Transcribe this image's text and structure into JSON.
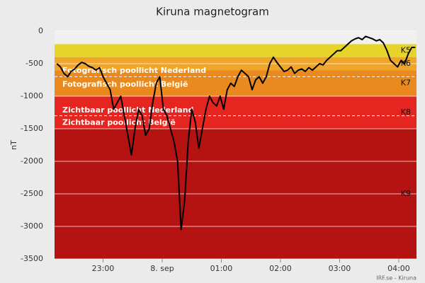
{
  "chart_data": {
    "type": "line",
    "title": "Kiruna magnetogram",
    "ylabel": "nT",
    "footer": "IRF.se - Kiruna",
    "ylim": [
      -3500,
      0
    ],
    "yticks": [
      0,
      -500,
      -1000,
      -1500,
      -2000,
      -2500,
      -3000,
      -3500
    ],
    "xlim": [
      22.18,
      28.3
    ],
    "xticks": [
      {
        "value": 23,
        "label": "23:00"
      },
      {
        "value": 24,
        "label": "8. sep"
      },
      {
        "value": 25,
        "label": "01:00"
      },
      {
        "value": 26,
        "label": "02:00"
      },
      {
        "value": 27,
        "label": "03:00"
      },
      {
        "value": 28,
        "label": "04:00"
      }
    ],
    "grid": true,
    "bands": [
      {
        "from": -200,
        "to": -400,
        "color": "#e6d42a",
        "label": "K5"
      },
      {
        "from": -400,
        "to": -600,
        "color": "#efa52a",
        "label": "K6"
      },
      {
        "from": -600,
        "to": -1000,
        "color": "#ea8a1e",
        "label": "K7"
      },
      {
        "from": -1000,
        "to": -1500,
        "color": "#e42520",
        "label": "K8"
      },
      {
        "from": -1500,
        "to": -3500,
        "color": "#b51212",
        "label": "K9"
      }
    ],
    "threshold_lines": [
      -700,
      -1300
    ],
    "annotations": [
      {
        "text": "Fotografisch poollicht Nederland",
        "value": -610
      },
      {
        "text": "Fotografisch poollicht België",
        "value": -820
      },
      {
        "text": "Zichtbaar poollicht Nederland",
        "value": -1220
      },
      {
        "text": "Zichtbaar poollicht België",
        "value": -1410
      }
    ],
    "series": [
      {
        "name": "Kiruna",
        "color": "#000000",
        "x": [
          22.22,
          22.28,
          22.34,
          22.4,
          22.46,
          22.52,
          22.58,
          22.64,
          22.7,
          22.76,
          22.82,
          22.88,
          22.94,
          23.0,
          23.06,
          23.12,
          23.18,
          23.24,
          23.3,
          23.36,
          23.42,
          23.48,
          23.54,
          23.6,
          23.66,
          23.72,
          23.78,
          23.84,
          23.9,
          23.96,
          24.02,
          24.08,
          24.14,
          24.2,
          24.26,
          24.32,
          24.38,
          24.44,
          24.5,
          24.56,
          24.62,
          24.68,
          24.74,
          24.8,
          24.86,
          24.92,
          24.98,
          25.04,
          25.1,
          25.16,
          25.22,
          25.28,
          25.34,
          25.4,
          25.46,
          25.52,
          25.58,
          25.64,
          25.7,
          25.76,
          25.82,
          25.88,
          25.94,
          26.0,
          26.06,
          26.12,
          26.18,
          26.24,
          26.3,
          26.36,
          26.42,
          26.48,
          26.54,
          26.6,
          26.66,
          26.72,
          26.78,
          26.84,
          26.9,
          26.96,
          27.02,
          27.08,
          27.14,
          27.2,
          27.26,
          27.32,
          27.38,
          27.44,
          27.5,
          27.56,
          27.62,
          27.68,
          27.74,
          27.8,
          27.86,
          27.92,
          27.98,
          28.04,
          28.1,
          28.16,
          28.22,
          28.28
        ],
        "values": [
          -500,
          -550,
          -650,
          -700,
          -620,
          -580,
          -520,
          -480,
          -500,
          -540,
          -560,
          -600,
          -560,
          -700,
          -800,
          -900,
          -1200,
          -1100,
          -1000,
          -1300,
          -1600,
          -1900,
          -1500,
          -1200,
          -1300,
          -1600,
          -1500,
          -1100,
          -800,
          -700,
          -1200,
          -1300,
          -1500,
          -1700,
          -2000,
          -3050,
          -2600,
          -1700,
          -1200,
          -1400,
          -1800,
          -1500,
          -1200,
          -1000,
          -1100,
          -1150,
          -1000,
          -1200,
          -900,
          -800,
          -850,
          -700,
          -600,
          -650,
          -700,
          -900,
          -750,
          -700,
          -800,
          -700,
          -500,
          -400,
          -480,
          -550,
          -620,
          -600,
          -550,
          -650,
          -600,
          -580,
          -620,
          -560,
          -600,
          -550,
          -500,
          -520,
          -450,
          -400,
          -350,
          -300,
          -300,
          -250,
          -200,
          -150,
          -120,
          -100,
          -130,
          -80,
          -100,
          -120,
          -150,
          -130,
          -180,
          -300,
          -450,
          -500,
          -550,
          -450,
          -500,
          -350,
          -250,
          -250
        ]
      }
    ]
  }
}
